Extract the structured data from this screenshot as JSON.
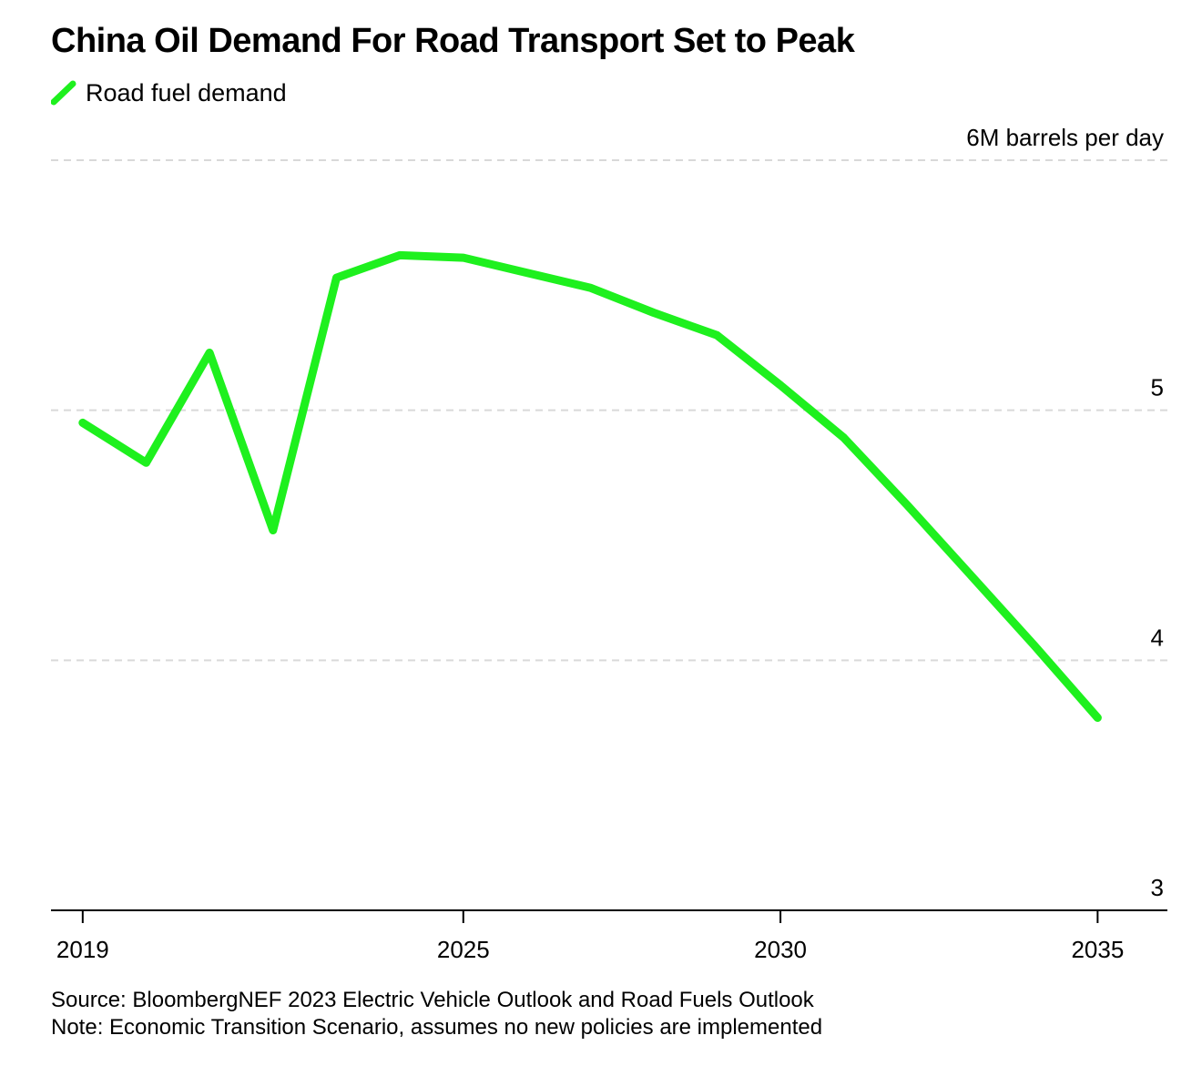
{
  "title": "China Oil Demand For Road Transport Set to Peak",
  "legend": {
    "label": "Road fuel demand",
    "color": "#1ef01e"
  },
  "chart_data": {
    "type": "line",
    "title": "China Oil Demand For Road Transport Set to Peak",
    "unit_label": "6M barrels per day",
    "y_ticks": [
      {
        "value": 6,
        "label": "6M barrels per day"
      },
      {
        "value": 5,
        "label": "5"
      },
      {
        "value": 4,
        "label": "4"
      },
      {
        "value": 3,
        "label": "3"
      }
    ],
    "ylim": [
      3,
      6
    ],
    "x_ticks": [
      {
        "value": 2019,
        "label": "2019"
      },
      {
        "value": 2025,
        "label": "2025"
      },
      {
        "value": 2030,
        "label": "2030"
      },
      {
        "value": 2035,
        "label": "2035"
      }
    ],
    "xlim": [
      2018.5,
      2036.1
    ],
    "grid": true,
    "legend_position": "top-left",
    "series": [
      {
        "name": "Road fuel demand",
        "color": "#1ef01e",
        "x": [
          2019,
          2020,
          2021,
          2022,
          2023,
          2024,
          2025,
          2026,
          2027,
          2028,
          2029,
          2030,
          2031,
          2032,
          2033,
          2034,
          2035
        ],
        "y": [
          4.95,
          4.79,
          5.23,
          4.52,
          5.53,
          5.62,
          5.61,
          5.55,
          5.49,
          5.39,
          5.3,
          5.1,
          4.89,
          4.62,
          4.34,
          4.06,
          3.77
        ]
      }
    ]
  },
  "footer": {
    "source": "Source: BloombergNEF 2023 Electric Vehicle Outlook and Road Fuels Outlook",
    "note": "Note: Economic Transition Scenario, assumes no new policies are implemented"
  }
}
